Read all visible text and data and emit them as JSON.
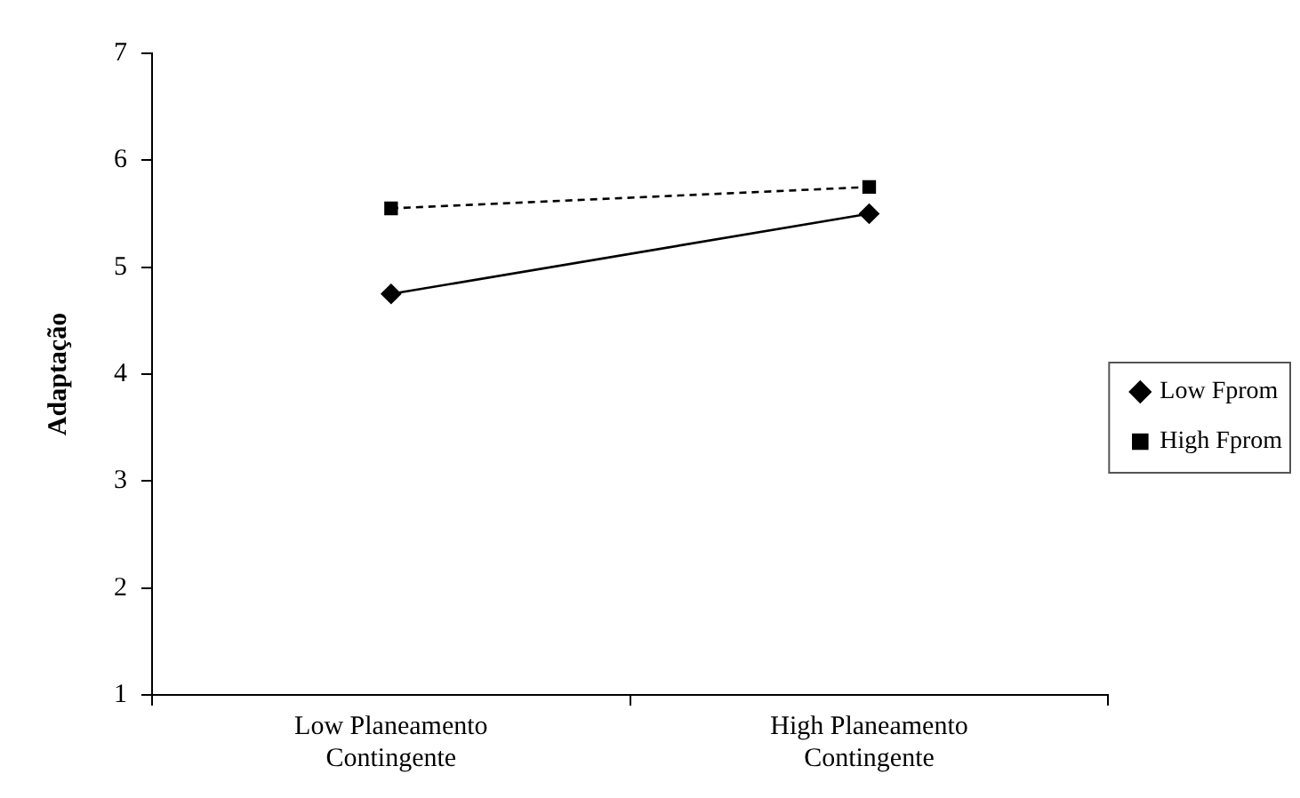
{
  "chart_data": {
    "type": "line",
    "ylabel": "Adaptação",
    "categories": [
      "Low Planeamento Contingente",
      "High Planeamento Contingente"
    ],
    "series": [
      {
        "name": "Low Fprom",
        "color": "#000000",
        "values": [
          4.75,
          5.5
        ],
        "marker": "diamond",
        "line_style": "solid"
      },
      {
        "name": "High Fprom",
        "color": "#000000",
        "values": [
          5.55,
          5.75
        ],
        "marker": "square",
        "line_style": "dashed"
      }
    ],
    "ylim": [
      1,
      7
    ],
    "yticks": [
      1,
      2,
      3,
      4,
      5,
      6,
      7
    ],
    "grid": false,
    "legend": "right"
  }
}
